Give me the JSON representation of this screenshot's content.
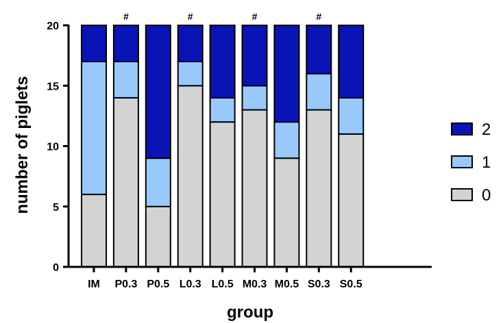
{
  "chart_data": {
    "type": "bar",
    "stacked": true,
    "categories": [
      "IM",
      "P0.3",
      "P0.5",
      "L0.3",
      "L0.5",
      "M0.3",
      "M0.5",
      "S0.3",
      "S0.5"
    ],
    "series": [
      {
        "name": "0",
        "color": "#d3d3d3",
        "values": [
          6,
          14,
          5,
          15,
          12,
          13,
          9,
          13,
          11
        ]
      },
      {
        "name": "1",
        "color": "#99c9fb",
        "values": [
          11,
          3,
          4,
          2,
          2,
          2,
          3,
          3,
          3
        ]
      },
      {
        "name": "2",
        "color": "#0a14b4",
        "values": [
          3,
          3,
          11,
          3,
          6,
          5,
          8,
          4,
          6
        ]
      }
    ],
    "annotations": [
      "",
      "#",
      "",
      "#",
      "",
      "#",
      "",
      "#",
      ""
    ],
    "xlabel": "group",
    "ylabel": "number of piglets",
    "ylim": [
      0,
      20
    ],
    "yticks": [
      0,
      5,
      10,
      15,
      20
    ],
    "legend_position": "right",
    "legend_order": [
      "2",
      "1",
      "0"
    ]
  }
}
